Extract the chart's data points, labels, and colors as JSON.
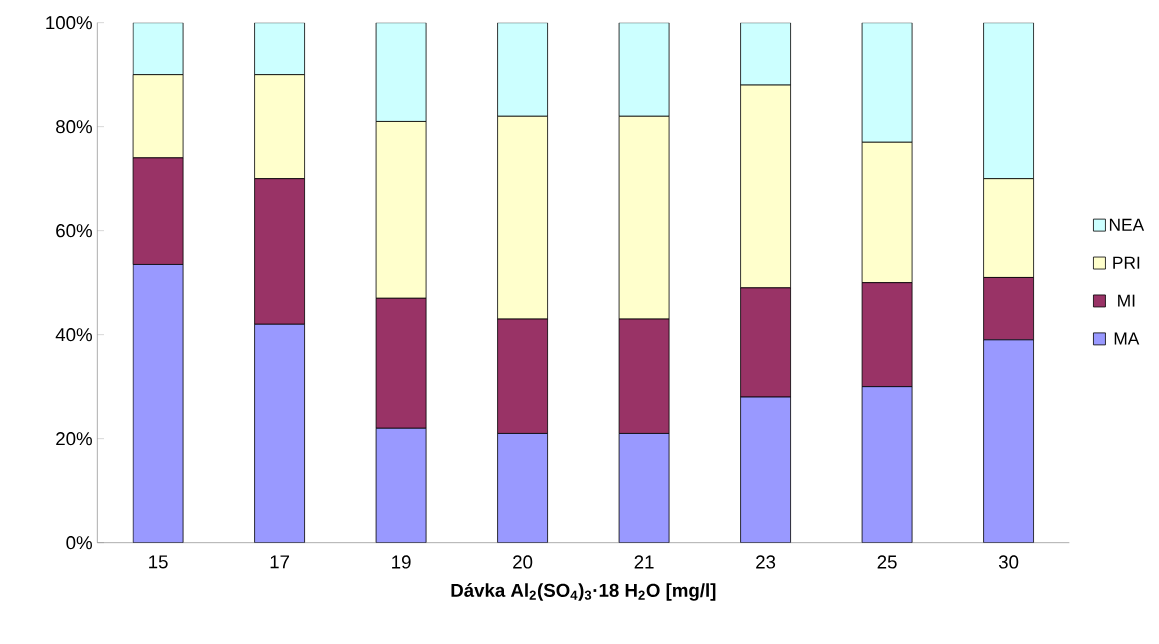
{
  "chart_data": {
    "type": "bar",
    "stacked": true,
    "xlabel": "Dávka Al$_{2}$(SO$_{4}$)$_{3}$·18 H$_{2}$O [mg/l]",
    "categories": [
      "15",
      "17",
      "19",
      "20",
      "21",
      "23",
      "25",
      "30"
    ],
    "series": [
      {
        "name": "MA",
        "color": "#9999ff",
        "values": [
          53.5,
          42,
          22,
          21,
          21,
          28,
          30,
          39
        ]
      },
      {
        "name": "MI",
        "color": "#993366",
        "values": [
          20.5,
          28,
          25,
          22,
          22,
          21,
          20,
          12
        ]
      },
      {
        "name": "PRI",
        "color": "#ffffcc",
        "values": [
          16,
          20,
          34,
          39,
          39,
          39,
          27,
          19
        ]
      },
      {
        "name": "NEA",
        "color": "#ccffff",
        "values": [
          10,
          10,
          19,
          18,
          18,
          12,
          23,
          30
        ]
      }
    ],
    "ylim": [
      0,
      100
    ],
    "yticks": [
      {
        "value": 0,
        "label": "0%"
      },
      {
        "value": 20,
        "label": "20%"
      },
      {
        "value": 40,
        "label": "40%"
      },
      {
        "value": 60,
        "label": "60%"
      },
      {
        "value": 80,
        "label": "80%"
      },
      {
        "value": 100,
        "label": "100%"
      }
    ],
    "grid": false,
    "legend": "right"
  }
}
